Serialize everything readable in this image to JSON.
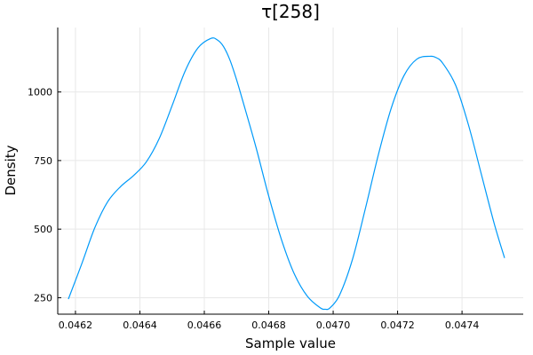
{
  "chart_data": {
    "type": "line",
    "title": "τ[258]",
    "xlabel": "Sample value",
    "ylabel": "Density",
    "xlim": [
      0.046145,
      0.04759
    ],
    "ylim": [
      190,
      1235
    ],
    "xticks": [
      {
        "value": 0.0462,
        "label": "0.0462"
      },
      {
        "value": 0.0464,
        "label": "0.0464"
      },
      {
        "value": 0.0466,
        "label": "0.0466"
      },
      {
        "value": 0.0468,
        "label": "0.0468"
      },
      {
        "value": 0.047,
        "label": "0.0470"
      },
      {
        "value": 0.0472,
        "label": "0.0472"
      },
      {
        "value": 0.0474,
        "label": "0.0474"
      }
    ],
    "yticks": [
      {
        "value": 250,
        "label": "250"
      },
      {
        "value": 500,
        "label": "500"
      },
      {
        "value": 750,
        "label": "750"
      },
      {
        "value": 1000,
        "label": "1000"
      }
    ],
    "grid": true,
    "legend": "none",
    "series": [
      {
        "color": "#009AF9",
        "x": [
          0.046178,
          0.04622,
          0.04626,
          0.0463,
          0.04634,
          0.04638,
          0.04642,
          0.04646,
          0.0465,
          0.04654,
          0.04658,
          0.04662,
          0.04664,
          0.04666,
          0.04668,
          0.0467,
          0.04672,
          0.04676,
          0.0468,
          0.04684,
          0.04688,
          0.04692,
          0.04696,
          0.046975,
          0.04699,
          0.04702,
          0.04706,
          0.0471,
          0.04714,
          0.04718,
          0.04722,
          0.04726,
          0.0473,
          0.04732,
          0.04734,
          0.04738,
          0.04742,
          0.04746,
          0.0475,
          0.047532
        ],
        "y": [
          245,
          375,
          505,
          600,
          655,
          695,
          745,
          830,
          950,
          1075,
          1160,
          1195,
          1190,
          1165,
          1115,
          1045,
          965,
          800,
          620,
          460,
          335,
          255,
          213,
          208,
          213,
          260,
          390,
          575,
          770,
          940,
          1060,
          1120,
          1130,
          1125,
          1105,
          1025,
          880,
          700,
          520,
          395
        ]
      }
    ]
  }
}
